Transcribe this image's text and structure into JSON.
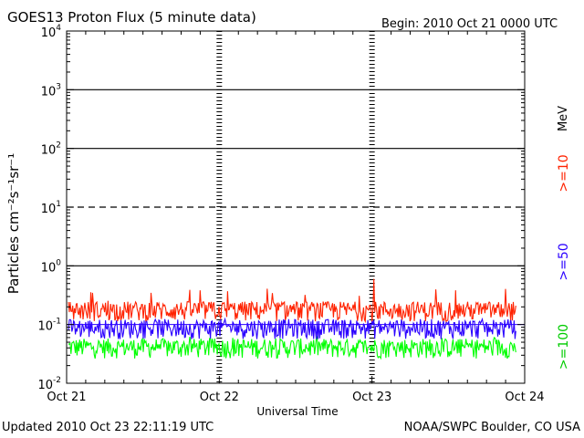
{
  "chart_data": {
    "type": "line",
    "title": "GOES13 Proton Flux (5 minute data)",
    "begin_label": "Begin: 2010 Oct 21 0000 UTC",
    "xlabel": "Universal Time",
    "ylabel": "Particles cm⁻²s⁻¹sr⁻¹",
    "y_scale": "log",
    "ylim": [
      0.01,
      10000
    ],
    "y_ticks": [
      {
        "base": "10",
        "exp": "4"
      },
      {
        "base": "10",
        "exp": "3"
      },
      {
        "base": "10",
        "exp": "2"
      },
      {
        "base": "10",
        "exp": "1"
      },
      {
        "base": "10",
        "exp": "0"
      },
      {
        "base": "10",
        "exp": "-1"
      },
      {
        "base": "10",
        "exp": "-2"
      }
    ],
    "x_ticks": [
      "Oct 21",
      "Oct 22",
      "Oct 23",
      "Oct 24"
    ],
    "xlim_days": [
      0,
      3
    ],
    "threshold_lines": {
      "solid": [
        1000,
        100,
        1
      ],
      "dashed": [
        10
      ]
    },
    "unit": "MeV",
    "series": [
      {
        "name": ">=10",
        "color": "#ff2200",
        "baseline": 0.15,
        "min": 0.09,
        "spike_max": 0.6
      },
      {
        "name": ">=50",
        "color": "#2a00ff",
        "baseline": 0.075,
        "min": 0.05,
        "spike_max": 0.15
      },
      {
        "name": ">=100",
        "color": "#00ff00",
        "baseline": 0.035,
        "min": 0.025,
        "spike_max": 0.08
      }
    ],
    "reference_level": 0.1
  },
  "footer": {
    "updated": "Updated 2010 Oct 23 22:11:19 UTC",
    "credit": "NOAA/SWPC Boulder, CO USA"
  }
}
